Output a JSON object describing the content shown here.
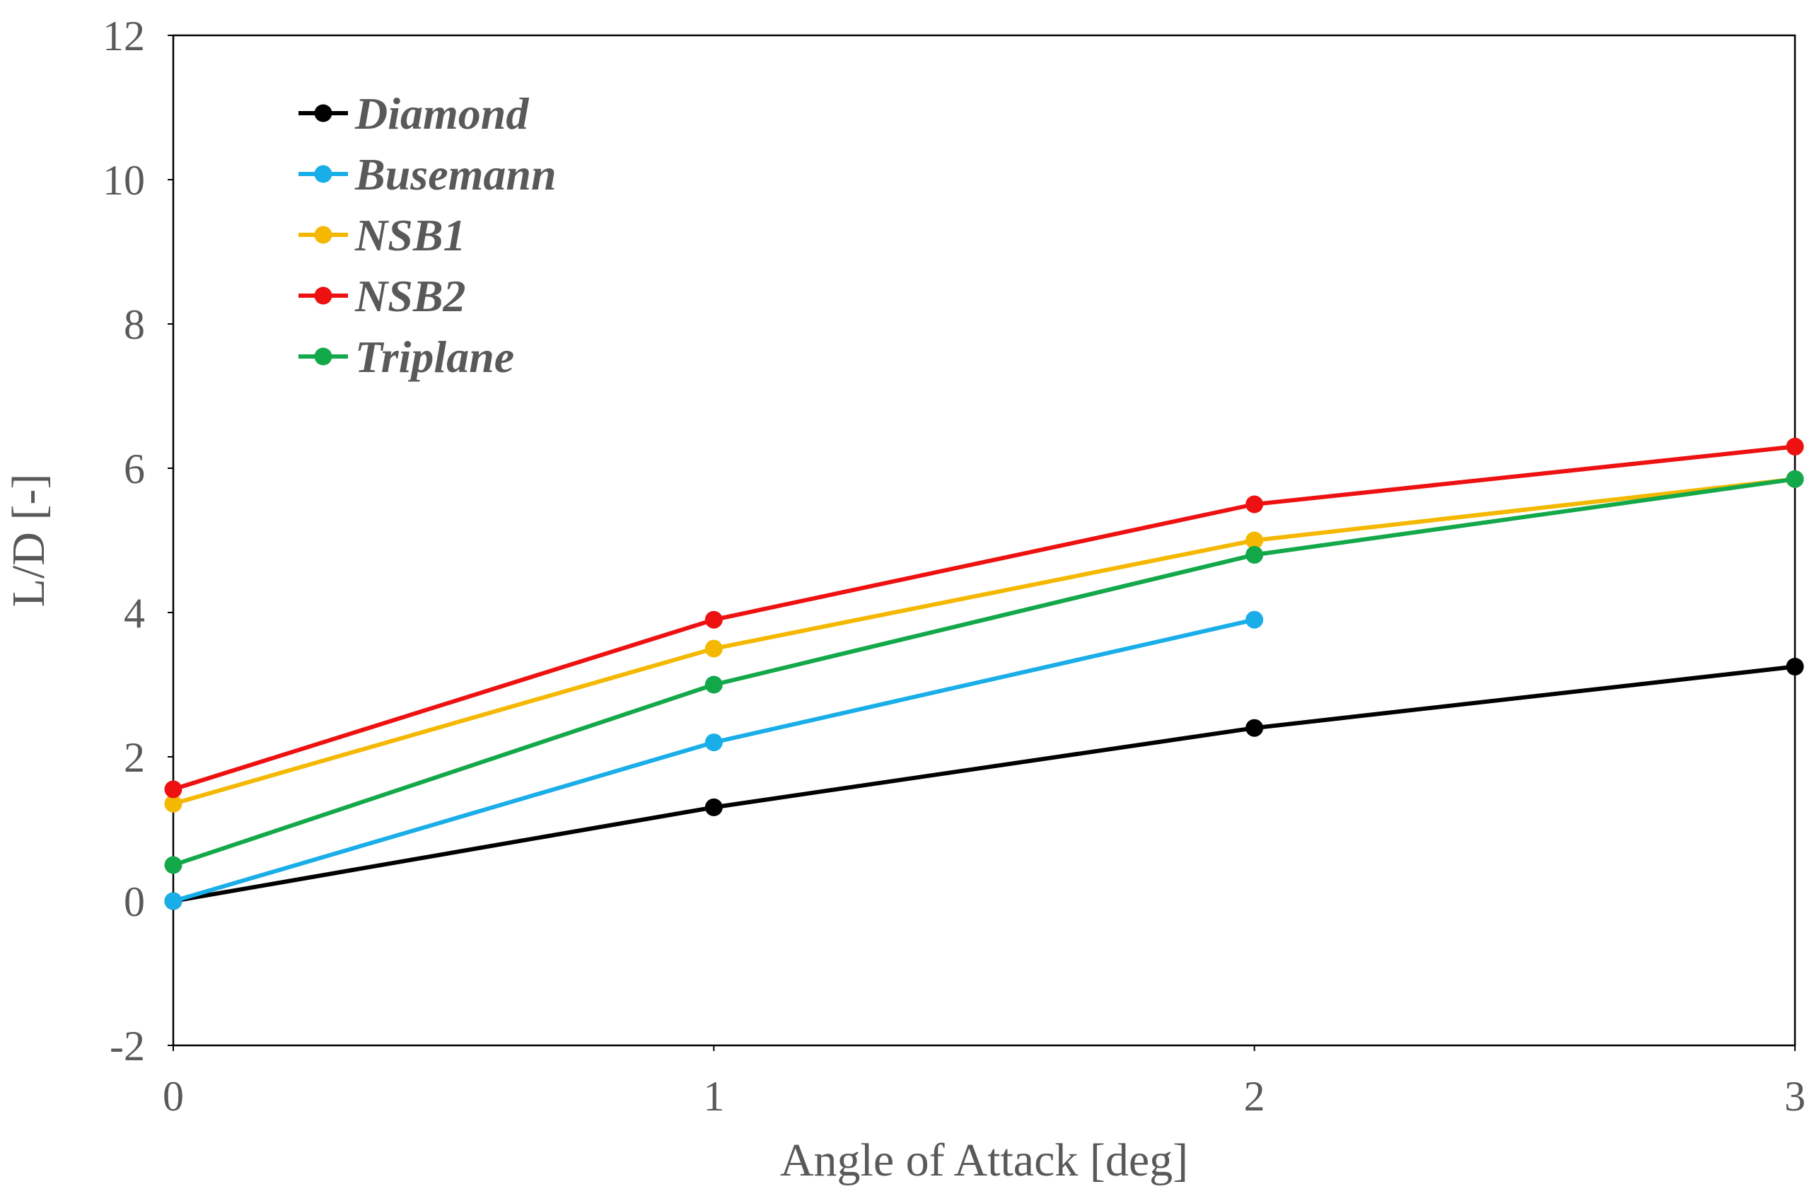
{
  "chart_data": {
    "type": "line",
    "title": "",
    "xlabel": "Angle of Attack [deg]",
    "ylabel": "L/D [-]",
    "xlim": [
      0,
      3
    ],
    "ylim": [
      -2,
      12
    ],
    "xticks": [
      0,
      1,
      2,
      3
    ],
    "yticks": [
      -2,
      0,
      2,
      4,
      6,
      8,
      10,
      12
    ],
    "grid": false,
    "legend_position": "top-left",
    "series": [
      {
        "name": "Diamond",
        "color": "#000000",
        "x": [
          0,
          1,
          2,
          3
        ],
        "values": [
          0.0,
          1.3,
          2.4,
          3.25
        ]
      },
      {
        "name": "Busemann",
        "color": "#1aaee8",
        "x": [
          0,
          1,
          2
        ],
        "values": [
          0.0,
          2.2,
          3.9
        ]
      },
      {
        "name": "NSB1",
        "color": "#f5b800",
        "x": [
          0,
          1,
          2,
          3
        ],
        "values": [
          1.35,
          3.5,
          5.0,
          5.85
        ]
      },
      {
        "name": "NSB2",
        "color": "#ee1111",
        "x": [
          0,
          1,
          2,
          3
        ],
        "values": [
          1.55,
          3.9,
          5.5,
          6.3
        ]
      },
      {
        "name": "Triplane",
        "color": "#13a84a",
        "x": [
          0,
          1,
          2,
          3
        ],
        "values": [
          0.5,
          3.0,
          4.8,
          5.85
        ]
      }
    ]
  }
}
